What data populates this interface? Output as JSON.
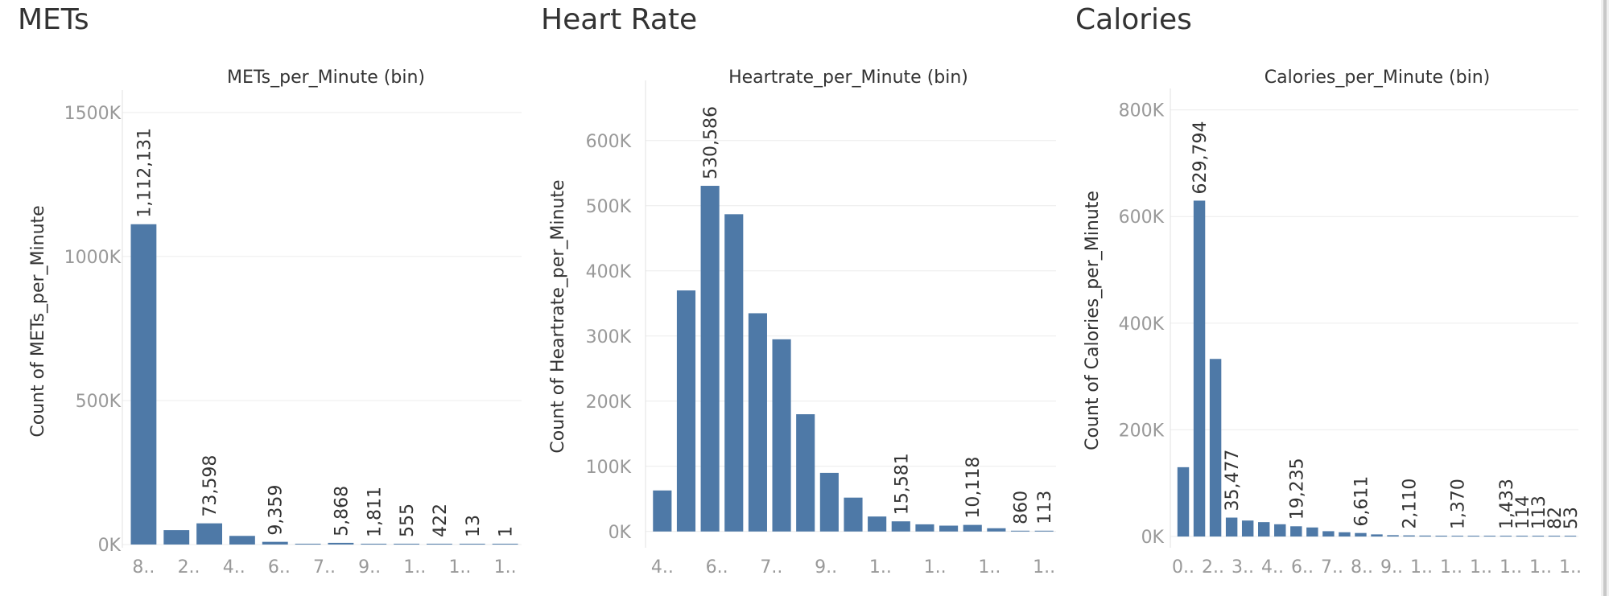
{
  "colors": {
    "bar": "#4e79a7",
    "grid": "#ececec",
    "tick": "#999999",
    "label": "#333333"
  },
  "chart_data": [
    {
      "type": "bar",
      "sheet_title": "METs",
      "title": "METs_per_Minute (bin)",
      "ylabel": "Count of METs_per_Minute",
      "xlabel": "",
      "ylim": [
        0,
        1550000
      ],
      "yticks": [
        0,
        500000,
        1000000,
        1500000
      ],
      "ytick_labels": [
        "0K",
        "500K",
        "1000K",
        "1500K"
      ],
      "grid": true,
      "x_tick_labels": [
        "8..",
        "2..",
        "4..",
        "6..",
        "7..",
        "9..",
        "1..",
        "1..",
        "1.."
      ],
      "values": [
        1112131,
        50000,
        73598,
        30000,
        9359,
        2000,
        5868,
        1811,
        555,
        422,
        13,
        1
      ],
      "data_labels": [
        "1,112,131",
        "",
        "73,598",
        "",
        "9,359",
        "",
        "5,868",
        "1,811",
        "555",
        "422",
        "13",
        "1"
      ]
    },
    {
      "type": "bar",
      "sheet_title": "Heart Rate",
      "title": "Heartrate_per_Minute (bin)",
      "ylabel": "Count of Heartrate_per_Minute",
      "xlabel": "",
      "ylim": [
        -20000,
        680000
      ],
      "yticks": [
        0,
        100000,
        200000,
        300000,
        400000,
        500000,
        600000
      ],
      "ytick_labels": [
        "0K",
        "100K",
        "200K",
        "300K",
        "400K",
        "500K",
        "600K"
      ],
      "grid": true,
      "x_tick_labels": [
        "4..",
        "6..",
        "7..",
        "9..",
        "1..",
        "1..",
        "1..",
        "1.."
      ],
      "values": [
        63000,
        370000,
        530586,
        487000,
        335000,
        295000,
        180000,
        90000,
        52000,
        23000,
        15581,
        11000,
        9000,
        10118,
        5000,
        860,
        113
      ],
      "data_labels": [
        "",
        "",
        "530,586",
        "",
        "",
        "",
        "",
        "",
        "",
        "",
        "15,581",
        "",
        "",
        "10,118",
        "",
        "860",
        "113"
      ]
    },
    {
      "type": "bar",
      "sheet_title": "Calories",
      "title": "Calories_per_Minute (bin)",
      "ylabel": "Count of Calories_per_Minute",
      "xlabel": "",
      "ylim": [
        -15000,
        825000
      ],
      "yticks": [
        0,
        200000,
        400000,
        600000,
        800000
      ],
      "ytick_labels": [
        "0K",
        "200K",
        "400K",
        "600K",
        "800K"
      ],
      "grid": true,
      "x_tick_labels": [
        "0..",
        "2..",
        "3..",
        "4..",
        "6..",
        "7..",
        "8..",
        "9..",
        "1..",
        "1..",
        "1..",
        "1..",
        "1..",
        "1.."
      ],
      "values": [
        130000,
        629794,
        333000,
        35477,
        30000,
        27000,
        23000,
        19235,
        17000,
        10000,
        8000,
        6611,
        4000,
        2500,
        2110,
        1800,
        1600,
        1370,
        1200,
        1000,
        1433,
        114,
        113,
        82,
        53
      ],
      "data_labels": [
        "",
        "629,794",
        "",
        "35,477",
        "",
        "",
        "",
        "19,235",
        "",
        "",
        "",
        "6,611",
        "",
        "",
        "2,110",
        "",
        "",
        "1,370",
        "",
        "",
        "1,433",
        "114",
        "113",
        "82",
        "53"
      ]
    }
  ]
}
